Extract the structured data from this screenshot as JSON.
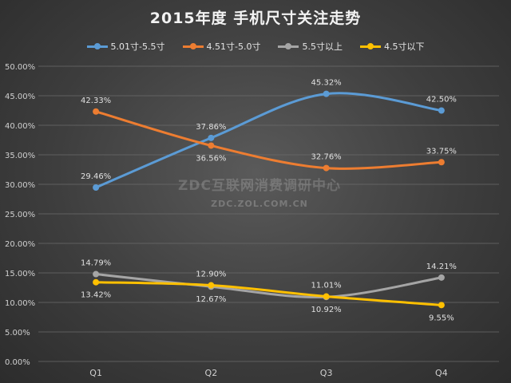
{
  "chart_data": {
    "type": "line",
    "title": "2015年度 手机尺寸关注走势",
    "categories": [
      "Q1",
      "Q2",
      "Q3",
      "Q4"
    ],
    "ylim": [
      0,
      50
    ],
    "yticks": [
      "0.00%",
      "5.00%",
      "10.00%",
      "15.00%",
      "20.00%",
      "25.00%",
      "30.00%",
      "35.00%",
      "40.00%",
      "45.00%",
      "50.00%"
    ],
    "legend_position": "top",
    "grid": true,
    "series": [
      {
        "name": "5.01寸-5.5寸",
        "color": "#5b9bd5",
        "values": [
          29.46,
          37.86,
          45.32,
          42.5
        ],
        "labels": [
          "29.46%",
          "37.86%",
          "45.32%",
          "42.50%"
        ],
        "label_pos": [
          "above",
          "above",
          "above",
          "above"
        ]
      },
      {
        "name": "4.51寸-5.0寸",
        "color": "#ed7d31",
        "values": [
          42.33,
          36.56,
          32.76,
          33.75
        ],
        "labels": [
          "42.33%",
          "36.56%",
          "32.76%",
          "33.75%"
        ],
        "label_pos": [
          "above",
          "below",
          "above",
          "above"
        ]
      },
      {
        "name": "5.5寸以上",
        "color": "#a5a5a5",
        "values": [
          14.79,
          12.67,
          10.92,
          14.21
        ],
        "labels": [
          "14.79%",
          "12.67%",
          "10.92%",
          "14.21%"
        ],
        "label_pos": [
          "above",
          "below",
          "below",
          "above"
        ]
      },
      {
        "name": "4.5寸以下",
        "color": "#ffc000",
        "values": [
          13.42,
          12.9,
          11.01,
          9.55
        ],
        "labels": [
          "13.42%",
          "12.90%",
          "11.01%",
          "9.55%"
        ],
        "label_pos": [
          "below",
          "above",
          "above",
          "below"
        ]
      }
    ]
  },
  "watermark": {
    "main": "ZDC互联网消费调研中心",
    "sub": "ZDC.ZOL.COM.CN"
  }
}
